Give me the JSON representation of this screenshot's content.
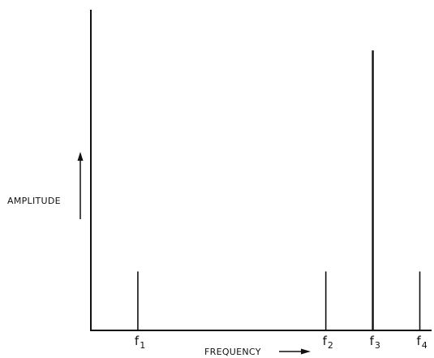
{
  "chart_data": {
    "type": "bar",
    "title": "",
    "xlabel": "FREQUENCY",
    "ylabel": "AMPLITUDE",
    "categories": [
      {
        "base": "f",
        "sub": "1"
      },
      {
        "base": "f",
        "sub": "2"
      },
      {
        "base": "f",
        "sub": "3"
      },
      {
        "base": "f",
        "sub": "4"
      }
    ],
    "values": [
      0.2,
      0.2,
      0.95,
      0.2
    ],
    "x_positions": [
      1,
      5,
      6,
      7
    ],
    "xlim": [
      0,
      7.25
    ],
    "ylim": [
      0,
      1
    ],
    "grid": false,
    "legend": "none",
    "colors": {
      "ink": "#111111",
      "background": "#ffffff"
    }
  }
}
